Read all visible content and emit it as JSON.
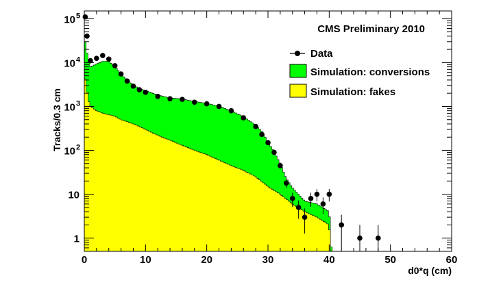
{
  "chart_data": {
    "type": "histogram",
    "header": "CMS Preliminary 2010",
    "xlabel": "d0*q (cm)",
    "ylabel": "Tracks/0.3 cm",
    "xlim": [
      0,
      60
    ],
    "ylim": [
      0.5,
      150000
    ],
    "log_y": true,
    "grid": false,
    "legend_position": "top-right",
    "x_ticks": [
      0,
      10,
      20,
      30,
      40,
      50,
      60
    ],
    "x_tick_labels": [
      "0",
      "10",
      "20",
      "30",
      "40",
      "50",
      "60"
    ],
    "y_ticks": [
      {
        "value": 1,
        "base": "1",
        "exp": ""
      },
      {
        "value": 10,
        "base": "10",
        "exp": ""
      },
      {
        "value": 100,
        "base": "10",
        "exp": "2"
      },
      {
        "value": 1000,
        "base": "10",
        "exp": "3"
      },
      {
        "value": 10000,
        "base": "10",
        "exp": "4"
      },
      {
        "value": 100000,
        "base": "10",
        "exp": "5"
      }
    ],
    "series": [
      {
        "name": "Data",
        "kind": "points",
        "color": "#000000",
        "x": [
          0.15,
          0.45,
          1,
          2,
          3,
          4,
          5,
          6,
          7,
          8,
          9,
          10,
          12,
          14,
          16,
          18,
          20,
          22,
          24,
          26,
          28,
          29,
          30,
          31,
          32,
          33,
          34,
          35,
          36,
          37,
          38,
          39,
          40,
          42,
          45,
          48
        ],
        "y": [
          110000,
          40000,
          11000,
          12500,
          14500,
          12000,
          8500,
          5500,
          3800,
          2900,
          2400,
          2100,
          1700,
          1500,
          1450,
          1250,
          1150,
          1000,
          800,
          550,
          350,
          230,
          150,
          90,
          45,
          18,
          8,
          5,
          3,
          8,
          10,
          6,
          10,
          2,
          1,
          1
        ]
      },
      {
        "name": "Simulation: conversions",
        "kind": "stacked-fill",
        "color": "#00ff00",
        "x": [
          0,
          0.3,
          0.6,
          1,
          2,
          3,
          4,
          5,
          6,
          7,
          8,
          9,
          10,
          12,
          14,
          16,
          18,
          20,
          22,
          24,
          26,
          28,
          29,
          30,
          31,
          32,
          33,
          34,
          35,
          36,
          38,
          40,
          41
        ],
        "y": [
          30000,
          20000,
          10000,
          7000,
          8500,
          10000,
          10000,
          7500,
          5000,
          3500,
          2700,
          2200,
          2000,
          1600,
          1400,
          1350,
          1200,
          1100,
          950,
          750,
          550,
          350,
          250,
          140,
          80,
          40,
          15,
          8,
          5,
          3,
          3,
          2,
          0
        ]
      },
      {
        "name": "Simulation: fakes",
        "kind": "stacked-fill",
        "color": "#ffff00",
        "x": [
          0,
          0.3,
          0.6,
          1,
          2,
          3,
          4,
          5,
          6,
          7,
          8,
          9,
          10,
          12,
          14,
          16,
          18,
          20,
          22,
          24,
          26,
          28,
          30,
          32,
          34,
          36,
          38,
          40,
          41
        ],
        "y": [
          6000,
          3000,
          1500,
          1000,
          800,
          700,
          650,
          600,
          500,
          450,
          400,
          350,
          300,
          220,
          170,
          130,
          100,
          80,
          60,
          45,
          35,
          25,
          15,
          10,
          6,
          4,
          3,
          2,
          0
        ]
      }
    ]
  }
}
